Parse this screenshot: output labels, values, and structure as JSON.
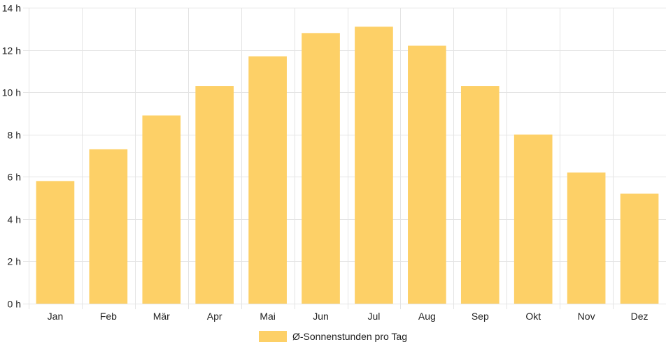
{
  "chart_data": {
    "type": "bar",
    "categories": [
      "Jan",
      "Feb",
      "Mär",
      "Apr",
      "Mai",
      "Jun",
      "Jul",
      "Aug",
      "Sep",
      "Okt",
      "Nov",
      "Dez"
    ],
    "series": [
      {
        "name": "Ø-Sonnenstunden pro Tag",
        "values": [
          5.8,
          7.3,
          8.9,
          10.3,
          11.7,
          12.8,
          13.1,
          12.2,
          10.3,
          8.0,
          6.2,
          5.2
        ]
      }
    ],
    "ylim": [
      0,
      14
    ],
    "yticks": [
      0,
      2,
      4,
      6,
      8,
      10,
      12,
      14
    ],
    "ytick_unit": " h",
    "grid": true,
    "legend": "bottom-center",
    "bar_color": "#fdd067",
    "grid_color": "#e4e4e4"
  }
}
